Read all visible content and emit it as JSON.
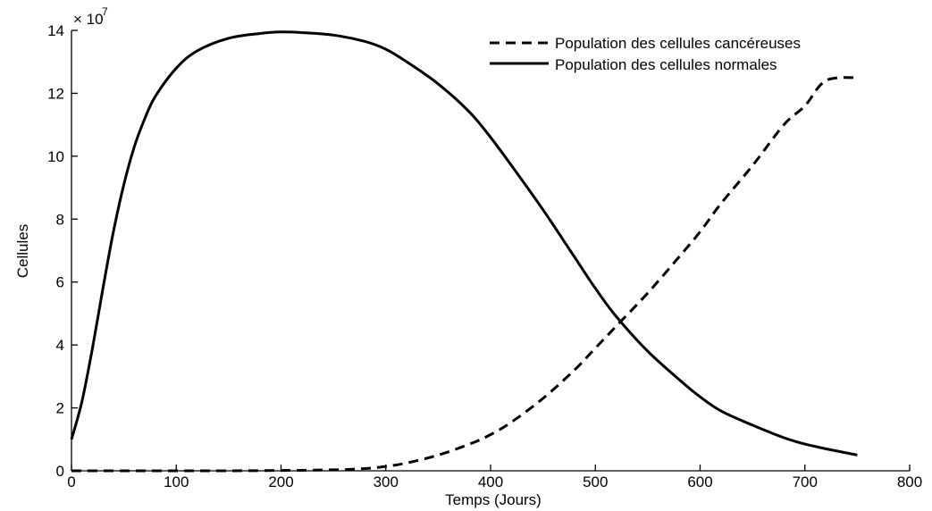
{
  "chart_data": {
    "type": "line",
    "title": "",
    "xlabel": "Temps (Jours)",
    "ylabel": "Cellules",
    "y_multiplier": "× 10",
    "y_exponent": "7",
    "xlim": [
      0,
      800
    ],
    "ylim": [
      0,
      14
    ],
    "xticks": [
      "0",
      "100",
      "200",
      "300",
      "400",
      "500",
      "600",
      "700",
      "800"
    ],
    "yticks": [
      "0",
      "2",
      "4",
      "6",
      "8",
      "10",
      "12",
      "14"
    ],
    "grid": false,
    "legend_position": "top-right",
    "series": [
      {
        "name": "Population des cellules cancéreuses",
        "style": "dashed",
        "color": "#000000",
        "x": [
          0,
          50,
          100,
          150,
          200,
          250,
          280,
          300,
          320,
          350,
          380,
          400,
          420,
          450,
          480,
          500,
          520,
          550,
          580,
          600,
          620,
          650,
          680,
          700,
          720,
          750
        ],
        "y": [
          0.0,
          0.0,
          0.0,
          0.0,
          0.01,
          0.03,
          0.07,
          0.14,
          0.25,
          0.5,
          0.85,
          1.15,
          1.55,
          2.3,
          3.2,
          3.9,
          4.6,
          5.65,
          6.8,
          7.6,
          8.5,
          9.7,
          11.0,
          11.6,
          12.4,
          12.5
        ]
      },
      {
        "name": "Population des cellules normales",
        "style": "solid",
        "color": "#000000",
        "x": [
          0,
          10,
          20,
          30,
          40,
          50,
          60,
          70,
          80,
          100,
          120,
          150,
          180,
          200,
          220,
          250,
          280,
          300,
          320,
          350,
          380,
          400,
          420,
          450,
          480,
          500,
          520,
          550,
          580,
          600,
          620,
          650,
          680,
          700,
          720,
          750
        ],
        "y": [
          1.0,
          2.2,
          3.9,
          5.8,
          7.6,
          9.1,
          10.3,
          11.2,
          11.9,
          12.8,
          13.35,
          13.75,
          13.9,
          13.95,
          13.93,
          13.85,
          13.65,
          13.4,
          13.0,
          12.3,
          11.4,
          10.6,
          9.7,
          8.3,
          6.8,
          5.8,
          4.9,
          3.8,
          2.9,
          2.35,
          1.9,
          1.45,
          1.05,
          0.85,
          0.7,
          0.5
        ]
      }
    ]
  }
}
